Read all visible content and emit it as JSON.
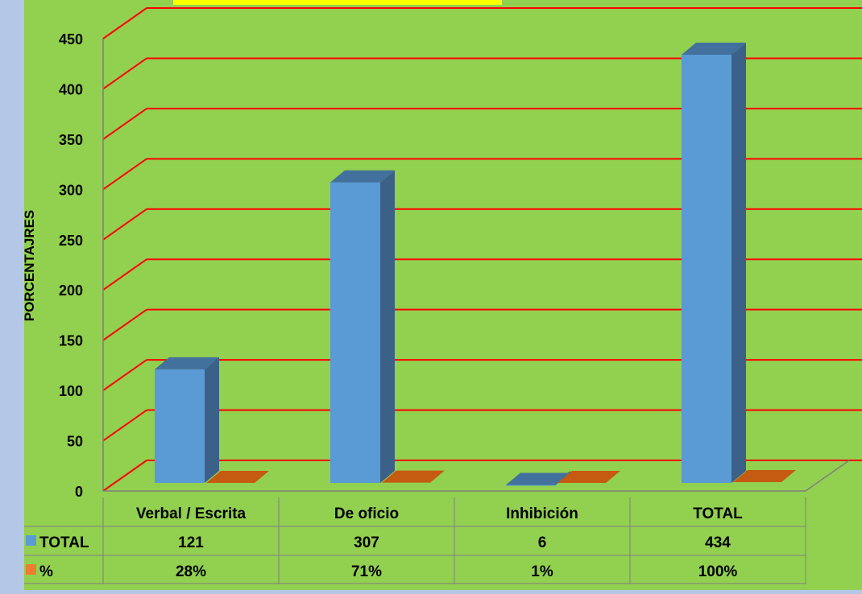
{
  "colors": {
    "background": "#b4c7e7",
    "plot_area": "#92d050",
    "gridline": "#ff0000",
    "title_highlight": "#ffff00",
    "series_total_front": "#5b9bd5",
    "series_total_top": "#41719c",
    "series_total_side": "#3b6189",
    "series_pct_top": "#c55a11",
    "table_border": "#7f7f7f"
  },
  "chart_data": {
    "type": "bar",
    "ylabel": "PORCENTAJRES",
    "ylim": [
      0,
      450
    ],
    "yticks": [
      0,
      50,
      100,
      150,
      200,
      250,
      300,
      350,
      400,
      450
    ],
    "grid": true,
    "categories": [
      "Verbal / Escrita",
      "De oficio",
      "Inhibición",
      "TOTAL"
    ],
    "series": [
      {
        "name": "TOTAL",
        "values": [
          121,
          307,
          6,
          434
        ]
      },
      {
        "name": "%",
        "values": [
          0.28,
          0.71,
          0.01,
          1.0
        ]
      }
    ],
    "data_table": {
      "rows": [
        {
          "label": "TOTAL",
          "cells": [
            "121",
            "307",
            "6",
            "434"
          ]
        },
        {
          "label": "%",
          "cells": [
            "28%",
            "71%",
            "1%",
            "100%"
          ]
        }
      ]
    }
  }
}
